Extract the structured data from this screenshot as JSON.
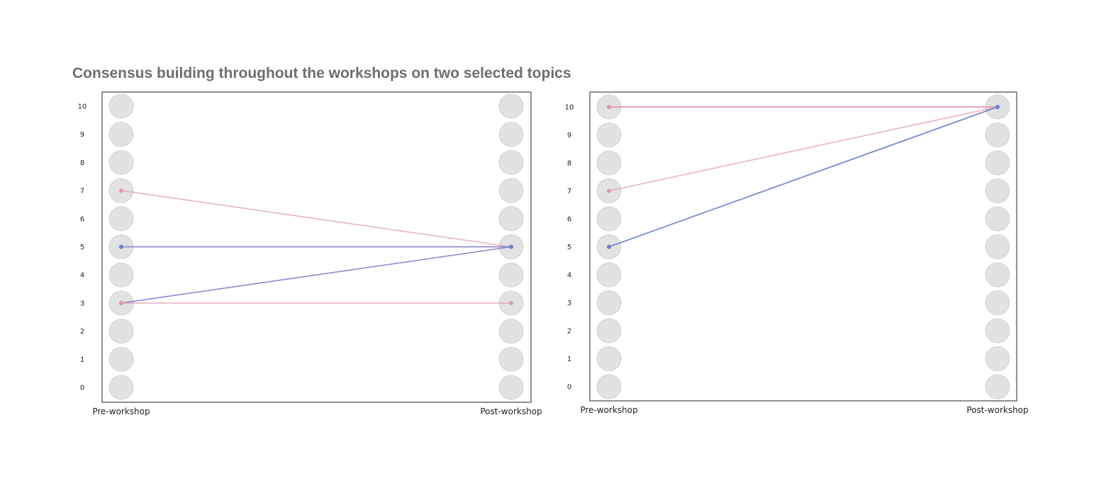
{
  "title": "Consensus building throughout the workshops on two selected topics",
  "colors": {
    "background_circle": "#e2e2e2",
    "background_circle_stroke": "#d2d2d2",
    "pink": "#e39aae",
    "blue": "#6b84d6",
    "axis": "#222222"
  },
  "chart_data": [
    {
      "type": "line",
      "x": [
        "Pre-workshop",
        "Post-workshop"
      ],
      "ylim": [
        0,
        10
      ],
      "y_ticks": [
        "0",
        "1",
        "2",
        "3",
        "4",
        "5",
        "6",
        "7",
        "8",
        "9",
        "10"
      ],
      "grid": false,
      "series": [
        {
          "values": [
            7,
            5
          ],
          "color": "pink"
        },
        {
          "values": [
            5,
            5
          ],
          "color": "pink"
        },
        {
          "values": [
            5,
            5
          ],
          "color": "pink"
        },
        {
          "values": [
            5,
            5
          ],
          "color": "blue"
        },
        {
          "values": [
            3,
            5
          ],
          "color": "pink"
        },
        {
          "values": [
            3,
            5
          ],
          "color": "blue"
        },
        {
          "values": [
            3,
            3
          ],
          "color": "pink"
        }
      ]
    },
    {
      "type": "line",
      "x": [
        "Pre-workshop",
        "Post-workshop"
      ],
      "ylim": [
        0,
        10
      ],
      "y_ticks": [
        "0",
        "1",
        "2",
        "3",
        "4",
        "5",
        "6",
        "7",
        "8",
        "9",
        "10"
      ],
      "grid": false,
      "series": [
        {
          "values": [
            10,
            10
          ],
          "color": "pink"
        },
        {
          "values": [
            10,
            10
          ],
          "color": "pink"
        },
        {
          "values": [
            10,
            10
          ],
          "color": "pink"
        },
        {
          "values": [
            7,
            10
          ],
          "color": "pink"
        },
        {
          "values": [
            5,
            10
          ],
          "color": "pink"
        },
        {
          "values": [
            5,
            10
          ],
          "color": "blue"
        },
        {
          "values": [
            5,
            10
          ],
          "color": "blue"
        }
      ]
    }
  ]
}
